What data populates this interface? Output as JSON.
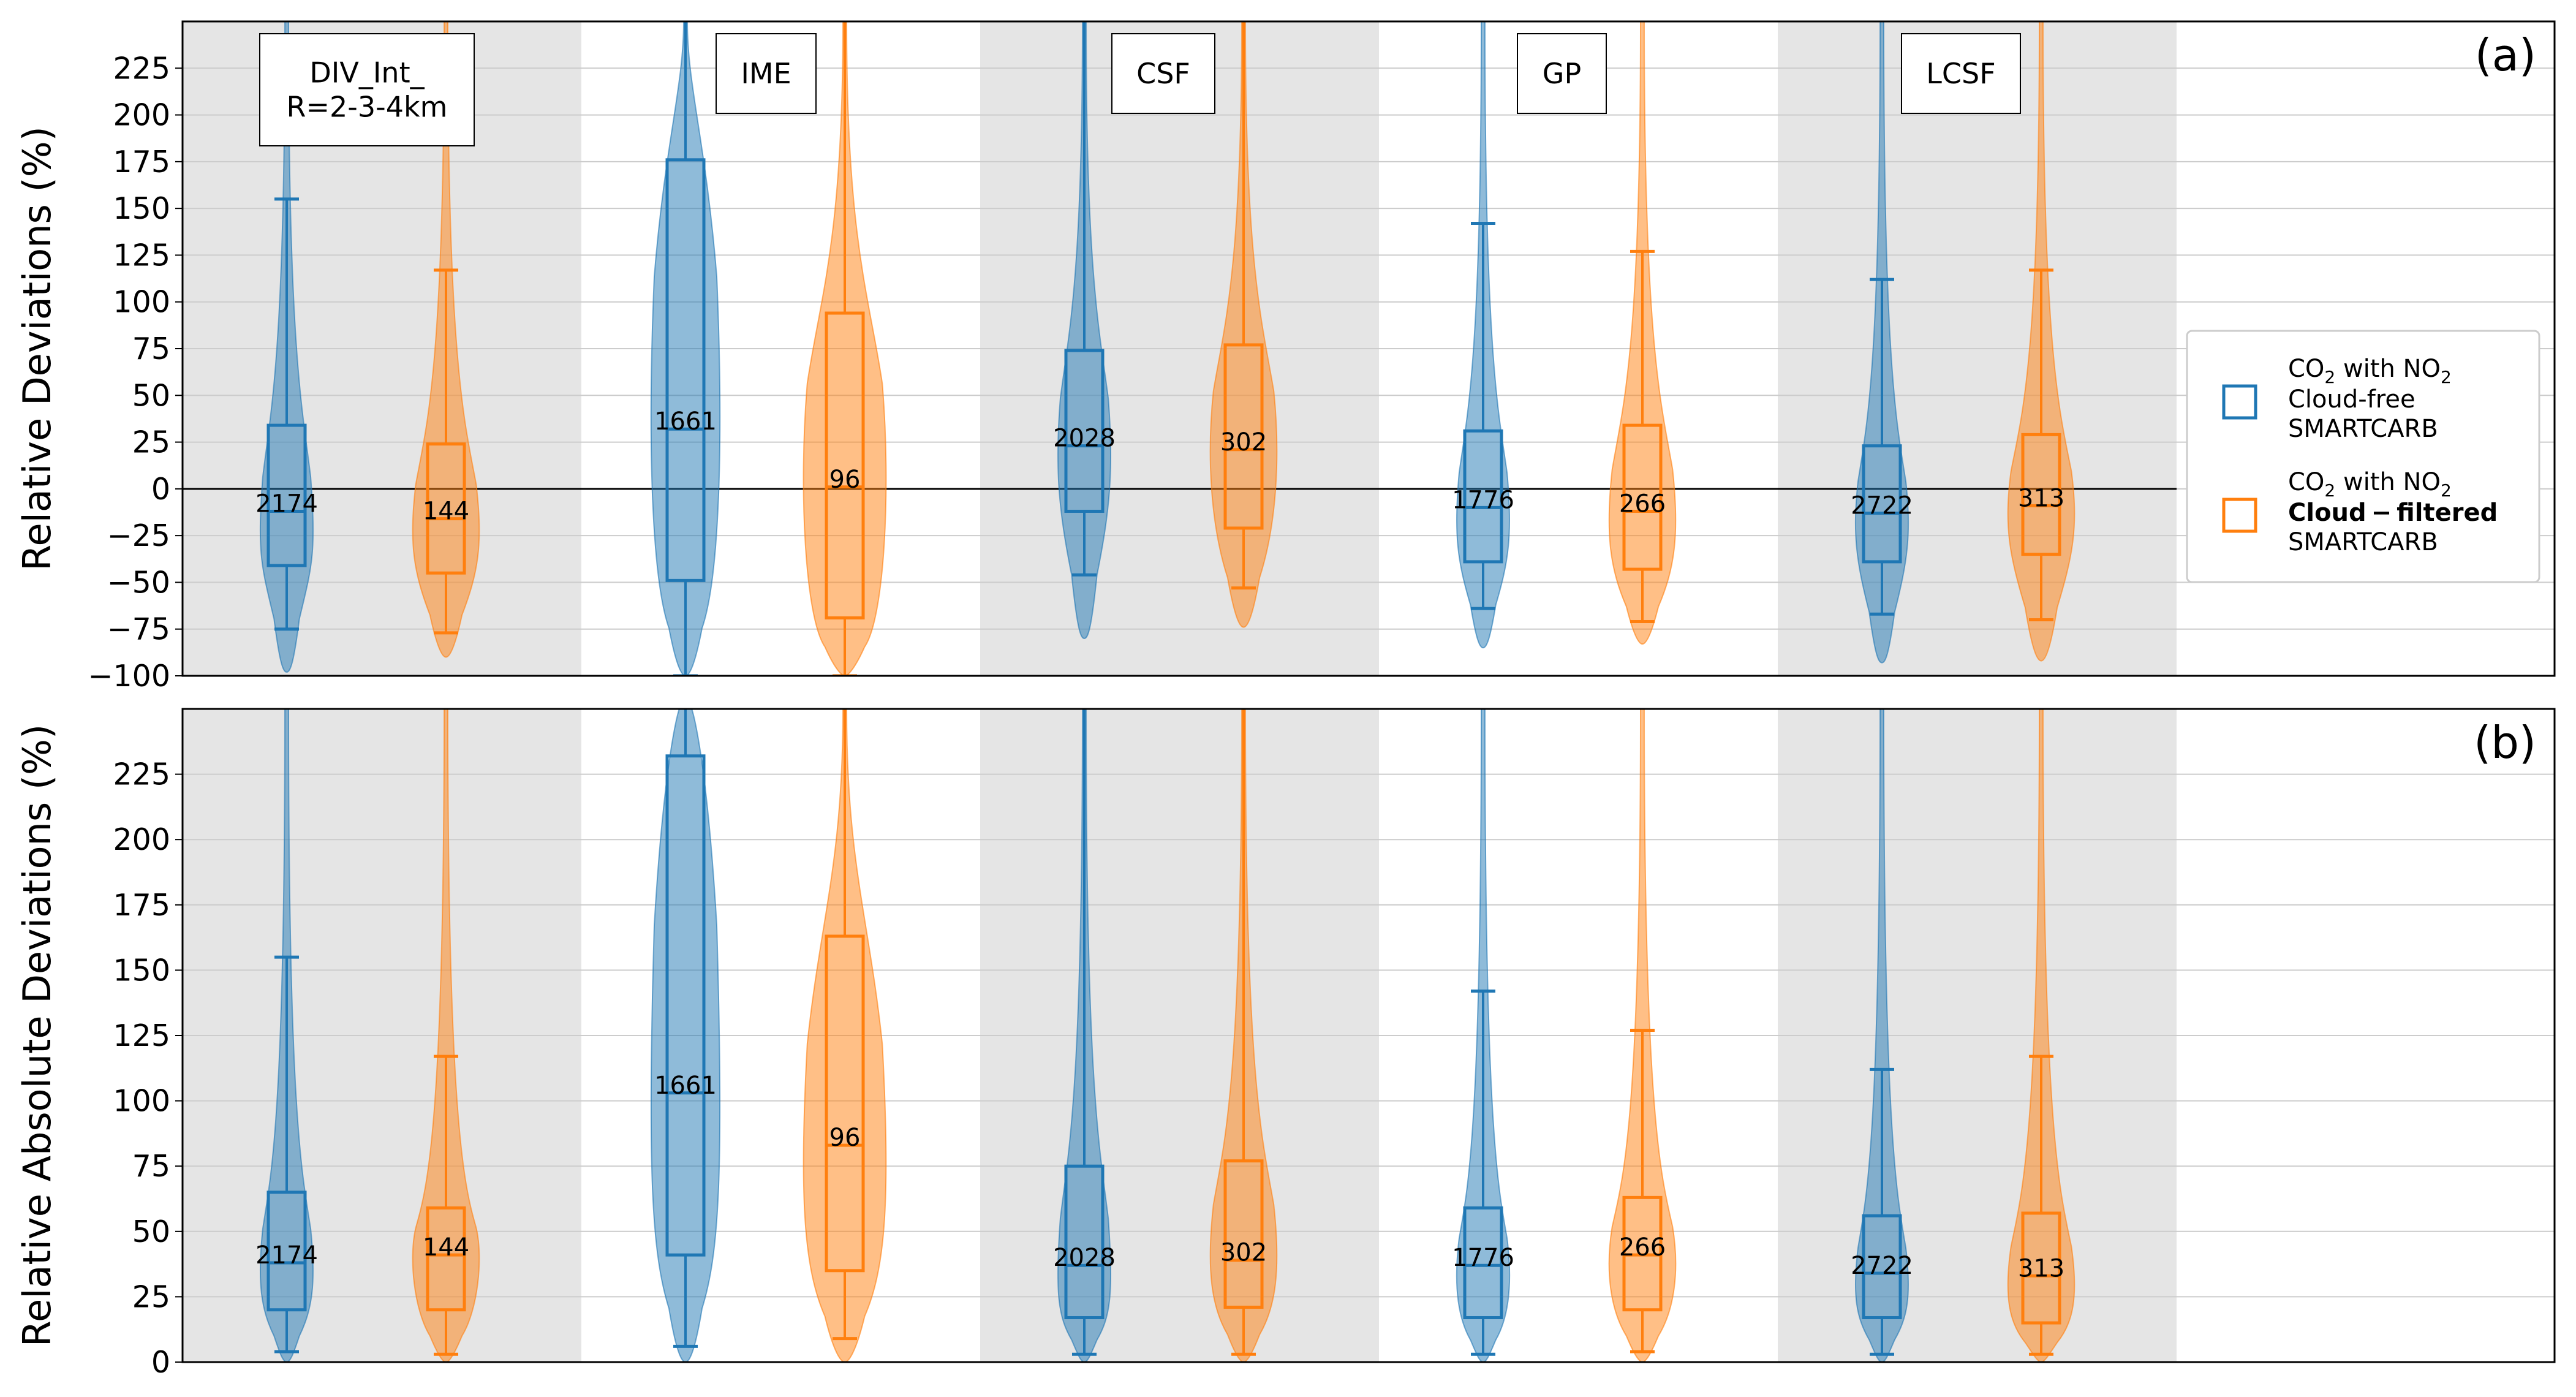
{
  "colors": {
    "cloud_free": "#1f77b4",
    "cloud_filtered": "#ff7f0e",
    "shade_band": "#e5e5e5",
    "grid": "#cccccc"
  },
  "legend": {
    "items": [
      {
        "line1": "CO",
        "sub": "2",
        "line1_rest": " with NO",
        "sub2": "2",
        "line2": "Cloud-free",
        "line2_bold": false,
        "line3": "SMARTCARB",
        "color_key": "cloud_free"
      },
      {
        "line1": "CO",
        "sub": "2",
        "line1_rest": " with NO",
        "sub2": "2",
        "line2": "Cloud − filtered",
        "line2_bold": true,
        "line3": "SMARTCARB",
        "color_key": "cloud_filtered"
      }
    ]
  },
  "chart_data": [
    {
      "type": "violin-box",
      "panel_label": "(a)",
      "ylabel": "Relative Deviations (%)",
      "ylim": [
        -100,
        250
      ],
      "yticks": [
        -100,
        -75,
        -50,
        -25,
        0,
        25,
        50,
        75,
        100,
        125,
        150,
        175,
        200,
        225
      ],
      "zero_line": true,
      "grid": "horizontal",
      "legend_placement": "right",
      "shaded_groups": [
        "DIV_Int_\nR=2-3-4km",
        "CSF",
        "LCSF"
      ],
      "groups": [
        {
          "name": "DIV_Int_\nR=2-3-4km",
          "series": [
            {
              "key": "cloud_free",
              "n": "2174",
              "q1": -41,
              "median": -12,
              "q3": 34,
              "whisker_low": -75,
              "whisker_high": 155,
              "violin_min": -98,
              "violin_max": 250,
              "violin_mode": -35
            },
            {
              "key": "cloud_filtered",
              "n": "144",
              "q1": -45,
              "median": -16,
              "q3": 24,
              "whisker_low": -77,
              "whisker_high": 117,
              "violin_min": -90,
              "violin_max": 250,
              "violin_mode": -30
            }
          ]
        },
        {
          "name": "IME",
          "series": [
            {
              "key": "cloud_free",
              "n": "1661",
              "q1": -49,
              "median": 32,
              "q3": 176,
              "whisker_low": -100,
              "whisker_high": 250,
              "violin_min": -100,
              "violin_max": 250,
              "violin_mode": 20
            },
            {
              "key": "cloud_filtered",
              "n": "96",
              "q1": -69,
              "median": 1,
              "q3": 94,
              "whisker_low": -100,
              "whisker_high": 250,
              "violin_min": -100,
              "violin_max": 250,
              "violin_mode": 0
            }
          ]
        },
        {
          "name": "CSF",
          "series": [
            {
              "key": "cloud_free",
              "n": "2028",
              "q1": -12,
              "median": 23,
              "q3": 74,
              "whisker_low": -46,
              "whisker_high": 250,
              "violin_min": -80,
              "violin_max": 250,
              "violin_mode": 10
            },
            {
              "key": "cloud_filtered",
              "n": "302",
              "q1": -21,
              "median": 21,
              "q3": 77,
              "whisker_low": -53,
              "whisker_high": 250,
              "violin_min": -74,
              "violin_max": 250,
              "violin_mode": 15
            }
          ]
        },
        {
          "name": "GP",
          "series": [
            {
              "key": "cloud_free",
              "n": "1776",
              "q1": -39,
              "median": -10,
              "q3": 31,
              "whisker_low": -64,
              "whisker_high": 142,
              "violin_min": -85,
              "violin_max": 250,
              "violin_mode": -25
            },
            {
              "key": "cloud_filtered",
              "n": "266",
              "q1": -43,
              "median": -12,
              "q3": 34,
              "whisker_low": -71,
              "whisker_high": 127,
              "violin_min": -83,
              "violin_max": 250,
              "violin_mode": -25
            }
          ]
        },
        {
          "name": "LCSF",
          "series": [
            {
              "key": "cloud_free",
              "n": "2722",
              "q1": -39,
              "median": -13,
              "q3": 23,
              "whisker_low": -67,
              "whisker_high": 112,
              "violin_min": -93,
              "violin_max": 250,
              "violin_mode": -25
            },
            {
              "key": "cloud_filtered",
              "n": "313",
              "q1": -35,
              "median": -9,
              "q3": 29,
              "whisker_low": -70,
              "whisker_high": 117,
              "violin_min": -92,
              "violin_max": 250,
              "violin_mode": -20
            }
          ]
        }
      ]
    },
    {
      "type": "violin-box",
      "panel_label": "(b)",
      "ylabel": "Relative Absolute Deviations (%)",
      "ylim": [
        0,
        250
      ],
      "yticks": [
        0,
        25,
        50,
        75,
        100,
        125,
        150,
        175,
        200,
        225
      ],
      "zero_line": false,
      "grid": "horizontal",
      "shaded_groups": [
        "DIV_Int_\nR=2-3-4km",
        "CSF",
        "LCSF"
      ],
      "groups": [
        {
          "name": "DIV_Int_\nR=2-3-4km",
          "series": [
            {
              "key": "cloud_free",
              "n": "2174",
              "q1": 20,
              "median": 38,
              "q3": 65,
              "whisker_low": 4,
              "whisker_high": 155,
              "violin_min": 0,
              "violin_max": 250,
              "violin_mode": 30
            },
            {
              "key": "cloud_filtered",
              "n": "144",
              "q1": 20,
              "median": 41,
              "q3": 59,
              "whisker_low": 3,
              "whisker_high": 117,
              "violin_min": 0,
              "violin_max": 250,
              "violin_mode": 40
            }
          ]
        },
        {
          "name": "IME",
          "series": [
            {
              "key": "cloud_free",
              "n": "1661",
              "q1": 41,
              "median": 103,
              "q3": 232,
              "whisker_low": 6,
              "whisker_high": 250,
              "violin_min": 0,
              "violin_max": 250,
              "violin_mode": 70
            },
            {
              "key": "cloud_filtered",
              "n": "96",
              "q1": 35,
              "median": 83,
              "q3": 163,
              "whisker_low": 9,
              "whisker_high": 250,
              "violin_min": 0,
              "violin_max": 250,
              "violin_mode": 60
            }
          ]
        },
        {
          "name": "CSF",
          "series": [
            {
              "key": "cloud_free",
              "n": "2028",
              "q1": 17,
              "median": 37,
              "q3": 75,
              "whisker_low": 3,
              "whisker_high": 250,
              "violin_min": 0,
              "violin_max": 250,
              "violin_mode": 25
            },
            {
              "key": "cloud_filtered",
              "n": "302",
              "q1": 21,
              "median": 39,
              "q3": 77,
              "whisker_low": 3,
              "whisker_high": 250,
              "violin_min": 0,
              "violin_max": 250,
              "violin_mode": 35
            }
          ]
        },
        {
          "name": "GP",
          "series": [
            {
              "key": "cloud_free",
              "n": "1776",
              "q1": 17,
              "median": 37,
              "q3": 59,
              "whisker_low": 3,
              "whisker_high": 142,
              "violin_min": 0,
              "violin_max": 250,
              "violin_mode": 30
            },
            {
              "key": "cloud_filtered",
              "n": "266",
              "q1": 20,
              "median": 41,
              "q3": 63,
              "whisker_low": 4,
              "whisker_high": 127,
              "violin_min": 0,
              "violin_max": 250,
              "violin_mode": 35
            }
          ]
        },
        {
          "name": "LCSF",
          "series": [
            {
              "key": "cloud_free",
              "n": "2722",
              "q1": 17,
              "median": 34,
              "q3": 56,
              "whisker_low": 3,
              "whisker_high": 112,
              "violin_min": 0,
              "violin_max": 250,
              "violin_mode": 25
            },
            {
              "key": "cloud_filtered",
              "n": "313",
              "q1": 15,
              "median": 33,
              "q3": 57,
              "whisker_low": 3,
              "whisker_high": 117,
              "violin_min": 0,
              "violin_max": 250,
              "violin_mode": 25
            }
          ]
        }
      ]
    }
  ]
}
